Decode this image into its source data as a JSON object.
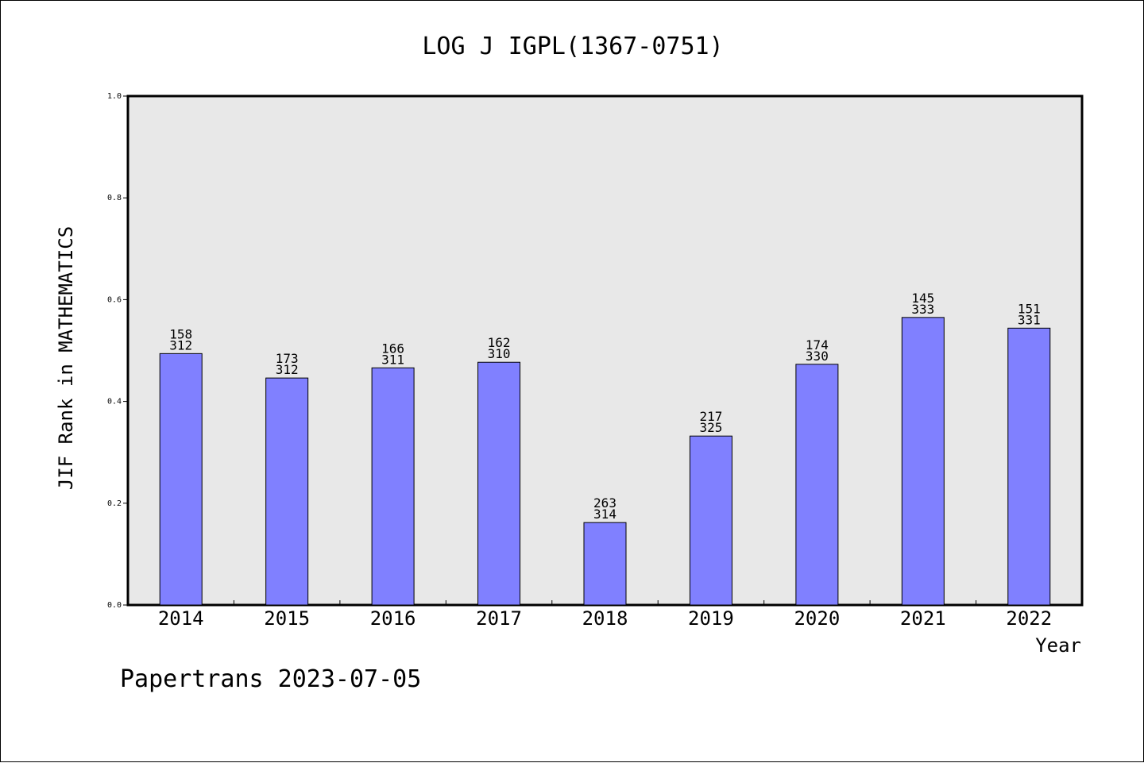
{
  "chart_data": {
    "type": "bar",
    "title": "LOG J IGPL(1367-0751)",
    "xlabel": "Year",
    "ylabel": "JIF Rank in MATHEMATICS",
    "ylim": [
      0,
      1.0
    ],
    "yticks": [
      "0.0",
      "0.2",
      "0.4",
      "0.6",
      "0.8",
      "1.0"
    ],
    "categories": [
      "2014",
      "2015",
      "2016",
      "2017",
      "2018",
      "2019",
      "2020",
      "2021",
      "2022"
    ],
    "values": [
      0.494,
      0.446,
      0.466,
      0.477,
      0.162,
      0.332,
      0.473,
      0.565,
      0.544
    ],
    "rank": [
      "158",
      "173",
      "166",
      "162",
      "263",
      "217",
      "174",
      "145",
      "151"
    ],
    "total": [
      "312",
      "312",
      "311",
      "310",
      "314",
      "325",
      "330",
      "333",
      "331"
    ],
    "bar_color": "#8080ff",
    "plot_bg": "#e8e8e8",
    "grid": false
  },
  "footer": "Papertrans 2023-07-05"
}
